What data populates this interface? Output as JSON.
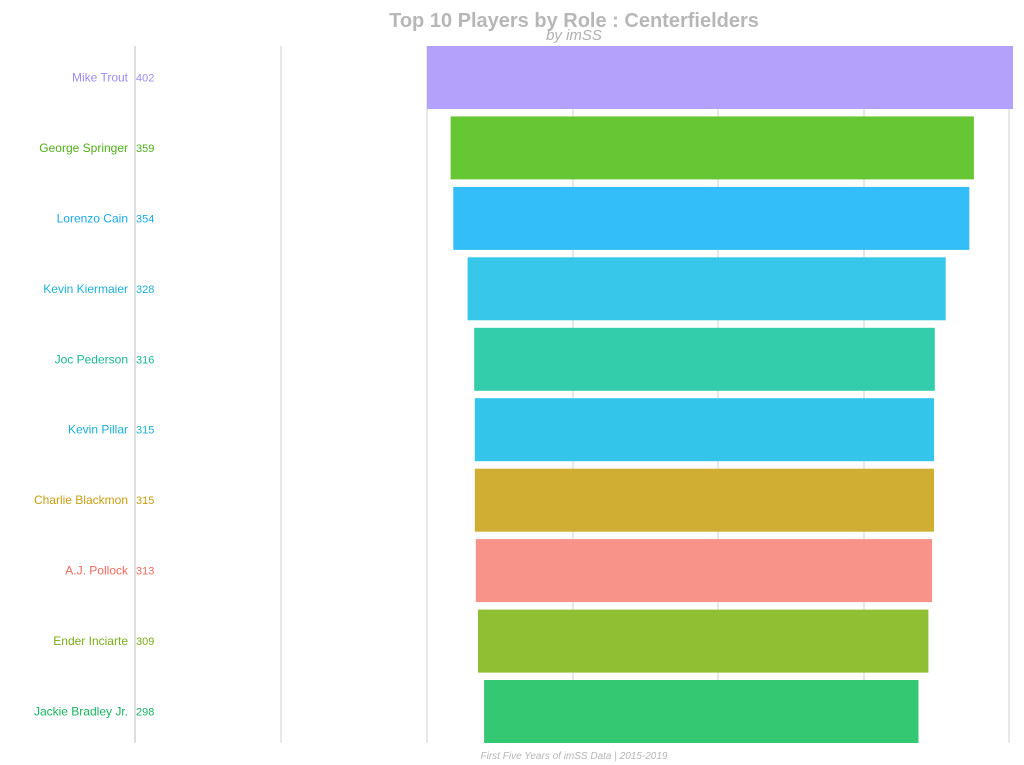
{
  "chart_data": {
    "type": "bar",
    "orientation": "horizontal",
    "title": "Top 10 Players by Role : Centerfielders",
    "subtitle": "by imSS",
    "caption": "First Five Years of imSS Data | 2015-2019",
    "xlim": [
      250,
      402
    ],
    "grid": true,
    "categories": [
      "Mike Trout",
      "George Springer",
      "Lorenzo Cain",
      "Kevin Kiermaier",
      "Joc Pederson",
      "Kevin Pillar",
      "Charlie Blackmon",
      "A.J. Pollock",
      "Ender Inciarte",
      "Jackie Bradley Jr."
    ],
    "values": [
      402,
      359,
      354,
      328,
      316,
      315,
      315,
      313,
      309,
      298
    ],
    "colors": [
      "#b3a1fc",
      "#66c633",
      "#33bdf9",
      "#36c7ea",
      "#33cdab",
      "#34c5ea",
      "#cfae33",
      "#f89389",
      "#90bf33",
      "#34c873"
    ],
    "label_colors": [
      "#a08cf2",
      "#4fae18",
      "#1aa9e8",
      "#1cb0d8",
      "#18b897",
      "#1ab0d8",
      "#c99d10",
      "#f06a5e",
      "#79ac18",
      "#18b560"
    ]
  }
}
